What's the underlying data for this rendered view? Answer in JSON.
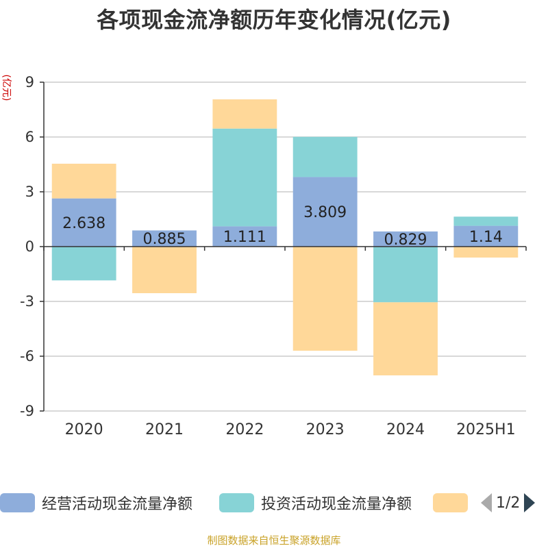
{
  "title": "各项现金流净额历年变化情况(亿元)",
  "unit_label": "(亿元)",
  "source_text": "制图数据来自恒生聚源数据库",
  "colors": {
    "operating": "#8eaddb",
    "investing": "#87d3d6",
    "financing": "#ffd899",
    "unit_red": "#cc0000",
    "source_gold": "#c9a227",
    "grid": "#cccccc",
    "axis": "#333333"
  },
  "legend": {
    "items": [
      {
        "label": "经营活动现金流量净额",
        "color": "#8eaddb"
      },
      {
        "label": "投资活动现金流量净额",
        "color": "#87d3d6"
      },
      {
        "label": "",
        "color": "#ffd899"
      }
    ],
    "page_text": "1/2"
  },
  "chart_data": {
    "type": "bar",
    "stacked": true,
    "title": "各项现金流净额历年变化情况(亿元)",
    "ylabel": "(亿元)",
    "ylim": [
      -9,
      9
    ],
    "yticks": [
      9,
      6,
      3,
      0,
      -3,
      -6,
      -9
    ],
    "categories": [
      "2020",
      "2021",
      "2022",
      "2023",
      "2024",
      "2025H1"
    ],
    "series": [
      {
        "name": "经营活动现金流量净额",
        "values": [
          2.638,
          0.885,
          1.111,
          3.809,
          0.829,
          1.14
        ],
        "data_labels": [
          "2.638",
          "0.885",
          "1.111",
          "3.809",
          "0.829",
          "1.14"
        ]
      },
      {
        "name": "投资活动现金流量净额",
        "values": [
          -1.85,
          0,
          5.35,
          2.2,
          -3.05,
          0.5
        ]
      },
      {
        "values": [
          1.9,
          -2.55,
          1.6,
          -5.7,
          -4.0,
          -0.6
        ]
      }
    ],
    "grid": true,
    "legend_position": "bottom"
  }
}
